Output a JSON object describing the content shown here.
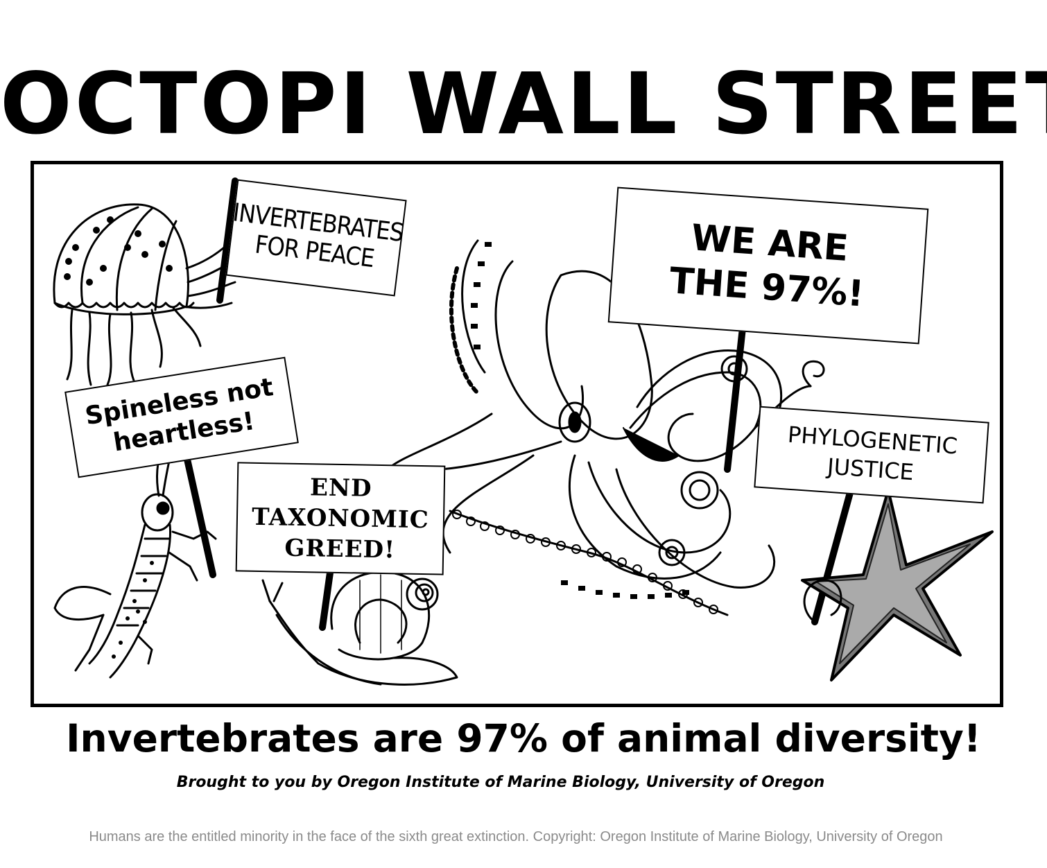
{
  "poster": {
    "title": "OCTOPI WALL STREET",
    "signs": {
      "jellyfish_sign": {
        "line1": "INVERTEBRATES",
        "line2": "FOR PEACE"
      },
      "octopus_sign": {
        "line1": "WE ARE",
        "line2": "THE 97%!"
      },
      "grasshopper_sign": {
        "line1": "Spineless not",
        "line2": "heartless!"
      },
      "snail_sign": {
        "line1": "END",
        "line2": "TAXONOMIC",
        "line3": "GREED!"
      },
      "starfish_sign": {
        "line1": "PHYLOGENETIC",
        "line2": "JUSTICE"
      }
    },
    "subtitle": "Invertebrates are 97% of animal diversity!",
    "credit": "Brought to you by Oregon Institute of Marine Biology, University of Oregon",
    "illustrations": [
      "jellyfish-icon",
      "octopus-icon",
      "grasshopper-icon",
      "snail-icon",
      "starfish-icon"
    ]
  },
  "caption": "Humans are the entitled minority in the face of the sixth great extinction. Copyright: Oregon Institute of Marine Biology, University of Oregon",
  "colors": {
    "ink": "#000000",
    "paper": "#ffffff",
    "caption": "#8a8a8a"
  }
}
